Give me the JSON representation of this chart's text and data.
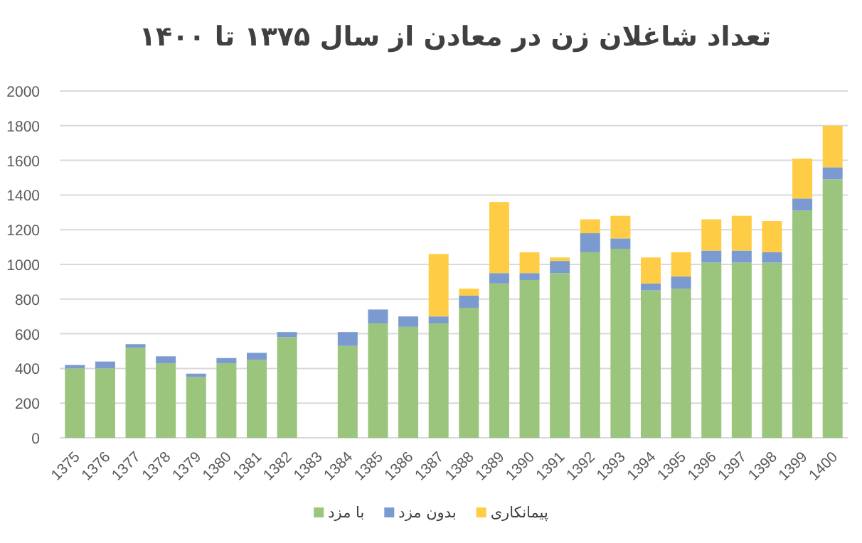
{
  "chart_data": {
    "type": "bar",
    "stacked": true,
    "title": "تعداد شاغلان زن در معادن از سال ۱۳۷۵ تا ۱۴۰۰",
    "categories": [
      "1375",
      "1376",
      "1377",
      "1378",
      "1379",
      "1380",
      "1381",
      "1382",
      "1383",
      "1384",
      "1385",
      "1386",
      "1387",
      "1388",
      "1389",
      "1390",
      "1391",
      "1392",
      "1393",
      "1394",
      "1395",
      "1396",
      "1397",
      "1398",
      "1399",
      "1400"
    ],
    "series": [
      {
        "name": "با مزد",
        "color": "#9bc47c",
        "values": [
          400,
          400,
          520,
          430,
          350,
          430,
          450,
          580,
          null,
          530,
          660,
          640,
          660,
          750,
          890,
          910,
          950,
          1070,
          1090,
          850,
          860,
          1010,
          1010,
          1010,
          1310,
          1490
        ]
      },
      {
        "name": "بدون مزد",
        "color": "#7b9bd0",
        "values": [
          20,
          40,
          20,
          40,
          20,
          30,
          40,
          30,
          null,
          80,
          80,
          60,
          40,
          70,
          60,
          40,
          70,
          110,
          60,
          40,
          70,
          70,
          70,
          60,
          70,
          70
        ]
      },
      {
        "name": "پیمانکاری",
        "color": "#ffcd45",
        "values": [
          0,
          0,
          0,
          0,
          0,
          0,
          0,
          0,
          null,
          0,
          0,
          0,
          360,
          40,
          410,
          120,
          20,
          80,
          130,
          150,
          140,
          180,
          200,
          180,
          230,
          240
        ]
      }
    ],
    "ylim": [
      0,
      2000
    ],
    "yticks": [
      0,
      200,
      400,
      600,
      800,
      1000,
      1200,
      1400,
      1600,
      1800,
      2000
    ],
    "grid": "y",
    "legend": "bottom"
  }
}
